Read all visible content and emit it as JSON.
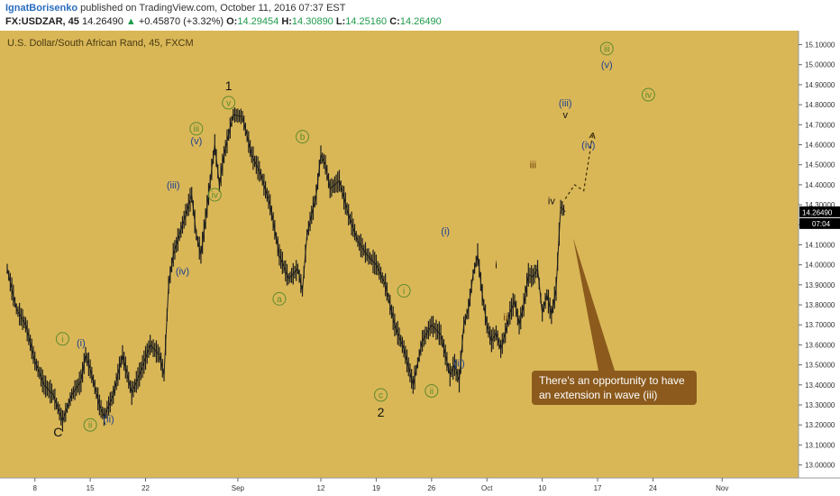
{
  "header": {
    "author": "IgnatBorisenko",
    "published_text": "published on TradingView.com, October 11, 2016 07:37 EST",
    "symbol": "FX:USDZAR, 45",
    "last": "14.26490",
    "arrow": "▲",
    "change": "+0.45870 (+3.32%)",
    "o_label": "O:",
    "o_value": "14.29454",
    "h_label": "H:",
    "h_value": "14.30890",
    "l_label": "L:",
    "l_value": "14.25160",
    "c_label": "C:",
    "c_value": "14.26490"
  },
  "colors": {
    "background": "#d9b757",
    "candle": "#1d1d1d",
    "axis_bg": "#ffffff",
    "wave_blue": "#1d3f94",
    "wave_green": "#5e8a2c",
    "wave_brown": "#6b3d07",
    "callout": "#8b5a1c",
    "price_tag": "#000000"
  },
  "chart_data": {
    "type": "line",
    "title": "U.S. Dollar/South African Rand, 45, FXCM",
    "ylim": [
      12.935,
      15.17
    ],
    "ylabel": "",
    "xlabel": "",
    "y_ticks": [
      "15.10000",
      "15.00000",
      "14.90000",
      "14.80000",
      "14.70000",
      "14.60000",
      "14.50000",
      "14.40000",
      "14.30000",
      "14.20000",
      "14.10000",
      "14.00000",
      "13.90000",
      "13.80000",
      "13.70000",
      "13.60000",
      "13.50000",
      "13.40000",
      "13.30000",
      "13.20000",
      "13.10000",
      "13.00000"
    ],
    "x_ticks": [
      {
        "label": "8",
        "idx": 6
      },
      {
        "label": "15",
        "idx": 18
      },
      {
        "label": "22",
        "idx": 30
      },
      {
        "label": "Sep",
        "idx": 50
      },
      {
        "label": "12",
        "idx": 68
      },
      {
        "label": "19",
        "idx": 80
      },
      {
        "label": "26",
        "idx": 92
      },
      {
        "label": "Oct",
        "idx": 104
      },
      {
        "label": "10",
        "idx": 116
      },
      {
        "label": "17",
        "idx": 128
      },
      {
        "label": "24",
        "idx": 140
      },
      {
        "label": "Nov",
        "idx": 155
      }
    ],
    "x_max": 170,
    "price_series": [
      [
        0,
        13.98
      ],
      [
        2,
        13.78
      ],
      [
        4,
        13.7
      ],
      [
        6,
        13.52
      ],
      [
        8,
        13.4
      ],
      [
        10,
        13.35
      ],
      [
        12,
        13.22
      ],
      [
        14,
        13.35
      ],
      [
        16,
        13.42
      ],
      [
        17,
        13.55
      ],
      [
        18,
        13.48
      ],
      [
        20,
        13.3
      ],
      [
        21,
        13.24
      ],
      [
        23,
        13.35
      ],
      [
        25,
        13.55
      ],
      [
        27,
        13.36
      ],
      [
        29,
        13.47
      ],
      [
        31,
        13.6
      ],
      [
        33,
        13.55
      ],
      [
        34,
        13.45
      ],
      [
        35,
        13.9
      ],
      [
        36,
        14.05
      ],
      [
        38,
        14.2
      ],
      [
        40,
        14.35
      ],
      [
        41,
        14.15
      ],
      [
        42,
        14.05
      ],
      [
        43,
        14.23
      ],
      [
        45,
        14.6
      ],
      [
        46,
        14.4
      ],
      [
        47,
        14.55
      ],
      [
        49,
        14.75
      ],
      [
        51,
        14.74
      ],
      [
        53,
        14.55
      ],
      [
        55,
        14.45
      ],
      [
        57,
        14.3
      ],
      [
        59,
        14.05
      ],
      [
        61,
        13.93
      ],
      [
        63,
        13.98
      ],
      [
        64,
        13.87
      ],
      [
        65,
        14.15
      ],
      [
        67,
        14.35
      ],
      [
        68,
        14.55
      ],
      [
        69,
        14.5
      ],
      [
        70,
        14.38
      ],
      [
        72,
        14.42
      ],
      [
        74,
        14.25
      ],
      [
        76,
        14.12
      ],
      [
        78,
        14.05
      ],
      [
        80,
        14.0
      ],
      [
        82,
        13.9
      ],
      [
        84,
        13.7
      ],
      [
        86,
        13.58
      ],
      [
        88,
        13.4
      ],
      [
        90,
        13.62
      ],
      [
        92,
        13.7
      ],
      [
        94,
        13.65
      ],
      [
        95,
        13.55
      ],
      [
        96,
        13.45
      ],
      [
        97,
        13.5
      ],
      [
        98,
        13.42
      ],
      [
        99,
        13.7
      ],
      [
        100,
        13.78
      ],
      [
        101,
        13.95
      ],
      [
        102,
        14.05
      ],
      [
        103,
        13.85
      ],
      [
        104,
        13.7
      ],
      [
        105,
        13.62
      ],
      [
        106,
        13.66
      ],
      [
        107,
        13.58
      ],
      [
        108,
        13.66
      ],
      [
        109,
        13.76
      ],
      [
        110,
        13.82
      ],
      [
        111,
        13.7
      ],
      [
        112,
        13.8
      ],
      [
        113,
        13.95
      ],
      [
        114,
        13.94
      ],
      [
        115,
        13.98
      ],
      [
        116,
        13.76
      ],
      [
        117,
        13.85
      ],
      [
        118,
        13.75
      ],
      [
        119,
        13.88
      ],
      [
        120,
        14.29
      ],
      [
        121,
        14.2649
      ]
    ],
    "forecast_path": [
      [
        121,
        14.33
      ],
      [
        123,
        14.4
      ],
      [
        125,
        14.37
      ],
      [
        127,
        14.66
      ]
    ],
    "last_price_tag": "14.26490",
    "countdown_tag": "07:04",
    "annotations": [
      {
        "text": "C",
        "style": "black",
        "idx": 11,
        "y": 13.16
      },
      {
        "text": "(i)",
        "style": "blue",
        "idx": 16,
        "y": 13.61
      },
      {
        "text": "i",
        "style": "green",
        "idx": 12,
        "y": 13.63
      },
      {
        "text": "ii",
        "style": "green",
        "idx": 18,
        "y": 13.2
      },
      {
        "text": "(ii)",
        "style": "blue",
        "idx": 22,
        "y": 13.23
      },
      {
        "text": "(iii)",
        "style": "blue",
        "idx": 36,
        "y": 14.4
      },
      {
        "text": "(iv)",
        "style": "blue",
        "idx": 38,
        "y": 13.97
      },
      {
        "text": "(v)",
        "style": "blue",
        "idx": 41,
        "y": 14.62
      },
      {
        "text": "iii",
        "style": "green",
        "idx": 41,
        "y": 14.68
      },
      {
        "text": "iv",
        "style": "green",
        "idx": 45,
        "y": 14.35
      },
      {
        "text": "v",
        "style": "green",
        "idx": 48,
        "y": 14.81
      },
      {
        "text": "1",
        "style": "black",
        "idx": 48,
        "y": 14.89
      },
      {
        "text": "a",
        "style": "green",
        "idx": 59,
        "y": 13.83
      },
      {
        "text": "b",
        "style": "green",
        "idx": 64,
        "y": 14.64
      },
      {
        "text": "c",
        "style": "green",
        "idx": 81,
        "y": 13.35
      },
      {
        "text": "2",
        "style": "black",
        "idx": 81,
        "y": 13.26
      },
      {
        "text": "i",
        "style": "green",
        "idx": 86,
        "y": 13.87
      },
      {
        "text": "ii",
        "style": "green",
        "idx": 92,
        "y": 13.37
      },
      {
        "text": "(i)",
        "style": "blue",
        "idx": 95,
        "y": 14.17
      },
      {
        "text": "(ii)",
        "style": "blue",
        "idx": 98,
        "y": 13.51
      },
      {
        "text": "i",
        "style": "black",
        "idx": 106,
        "y": 14.0
      },
      {
        "text": "ii",
        "style": "brown",
        "idx": 108,
        "y": 13.74
      },
      {
        "text": "iii",
        "style": "brown",
        "idx": 114,
        "y": 14.5
      },
      {
        "text": "iv",
        "style": "black",
        "idx": 118,
        "y": 14.32
      },
      {
        "text": "(iii)",
        "style": "blue",
        "idx": 121,
        "y": 14.81
      },
      {
        "text": "v",
        "style": "black",
        "idx": 121,
        "y": 14.75
      },
      {
        "text": "(iv)",
        "style": "blue",
        "idx": 126,
        "y": 14.6
      },
      {
        "text": "iii",
        "style": "green",
        "idx": 130,
        "y": 15.08
      },
      {
        "text": "(v)",
        "style": "blue",
        "idx": 130,
        "y": 15.0
      },
      {
        "text": "iv",
        "style": "green",
        "idx": 139,
        "y": 14.85
      }
    ],
    "callout": {
      "line1": "There's an opportunity to have",
      "line2": "an extension in wave (iii)"
    }
  }
}
